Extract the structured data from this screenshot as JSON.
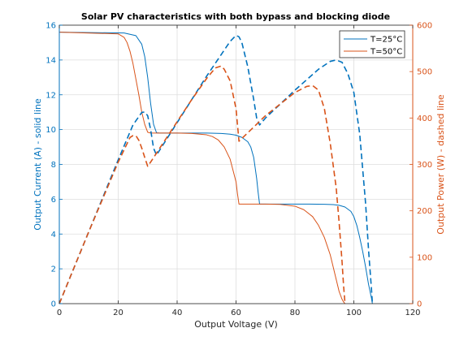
{
  "colors": {
    "blue": "#0072bd",
    "orange": "#d95319",
    "grid": "#dedede",
    "axis": "#262626"
  },
  "chart_data": {
    "type": "line",
    "title": "Solar PV characteristics with both bypass and blocking diode",
    "xlabel": "Output Voltage (V)",
    "ylabel_left": "Output Current (A) - solid line",
    "ylabel_right": "Output Power (W) - dashed line",
    "xlim": [
      0,
      120
    ],
    "ylim_left": [
      0,
      16
    ],
    "ylim_right": [
      0,
      600
    ],
    "xticks": [
      0,
      20,
      40,
      60,
      80,
      100,
      120
    ],
    "yticks_left": [
      0,
      2,
      4,
      6,
      8,
      10,
      12,
      14,
      16
    ],
    "yticks_right": [
      0,
      100,
      200,
      300,
      400,
      500,
      600
    ],
    "grid": true,
    "legend_position": "top-right",
    "legend": [
      "T=25°C",
      "T=50°C"
    ],
    "series": [
      {
        "name": "T=25°C",
        "axis": "left",
        "style": "solid",
        "color": "blue",
        "x": [
          0,
          22,
          26,
          28,
          29,
          30,
          31,
          32,
          33,
          34,
          40,
          50,
          55,
          58,
          60,
          62,
          64,
          65,
          66,
          67,
          67.5,
          68,
          75,
          85,
          90,
          93,
          95,
          97,
          99,
          100,
          101,
          102,
          103,
          104,
          105,
          106,
          106.3
        ],
        "y": [
          15.6,
          15.55,
          15.4,
          14.9,
          14.2,
          13.0,
          11.5,
          10.3,
          9.82,
          9.8,
          9.8,
          9.8,
          9.78,
          9.74,
          9.68,
          9.55,
          9.3,
          9.0,
          8.4,
          7.2,
          6.4,
          5.72,
          5.72,
          5.72,
          5.71,
          5.69,
          5.65,
          5.55,
          5.3,
          5.0,
          4.5,
          3.8,
          3.0,
          2.1,
          1.1,
          0.3,
          0
        ]
      },
      {
        "name": "T=50°C",
        "axis": "left",
        "style": "solid",
        "color": "orange",
        "x": [
          0,
          20,
          22,
          23,
          24,
          25,
          26,
          27,
          28,
          29,
          30,
          31,
          40,
          45,
          50,
          52,
          54,
          56,
          58,
          60,
          60.5,
          61,
          70,
          75,
          80,
          83,
          86,
          88,
          90,
          92,
          93,
          94,
          95,
          96,
          96.5,
          97
        ],
        "y": [
          15.6,
          15.5,
          15.3,
          15.0,
          14.5,
          13.8,
          12.9,
          12.0,
          11.0,
          10.3,
          9.85,
          9.8,
          9.8,
          9.78,
          9.7,
          9.6,
          9.4,
          9.0,
          8.3,
          7.0,
          6.3,
          5.72,
          5.72,
          5.7,
          5.6,
          5.4,
          5.0,
          4.5,
          3.8,
          2.8,
          2.1,
          1.4,
          0.7,
          0.25,
          0.1,
          0
        ]
      },
      {
        "name": "T=25°C",
        "axis": "right",
        "style": "dashed",
        "color": "blue",
        "x": [
          0,
          10,
          20,
          25,
          28,
          29,
          30,
          31,
          32,
          33,
          34,
          40,
          50,
          55,
          58,
          60,
          61,
          62,
          64,
          66,
          67,
          68,
          70,
          80,
          88,
          92,
          94,
          96,
          98,
          100,
          102,
          104,
          105,
          106,
          106.3
        ],
        "y": [
          0,
          155,
          310,
          385,
          412,
          413,
          405,
          375,
          335,
          320,
          330,
          390,
          490,
          537,
          565,
          578,
          575,
          562,
          510,
          440,
          400,
          385,
          400,
          460,
          505,
          522,
          525,
          520,
          495,
          455,
          365,
          215,
          115,
          30,
          0
        ]
      },
      {
        "name": "T=50°C",
        "axis": "right",
        "style": "dashed",
        "color": "orange",
        "x": [
          0,
          10,
          20,
          24,
          25,
          26,
          27,
          28,
          29,
          30,
          31,
          40,
          45,
          50,
          53,
          55,
          56,
          58,
          60,
          61,
          62,
          70,
          80,
          84,
          86,
          88,
          90,
          92,
          94,
          95,
          96,
          96.5,
          97
        ],
        "y": [
          0,
          155,
          305,
          358,
          362,
          362,
          352,
          335,
          315,
          296,
          305,
          392,
          440,
          485,
          508,
          512,
          505,
          480,
          420,
          350,
          356,
          405,
          455,
          468,
          470,
          460,
          420,
          345,
          250,
          175,
          90,
          40,
          0
        ]
      }
    ]
  }
}
